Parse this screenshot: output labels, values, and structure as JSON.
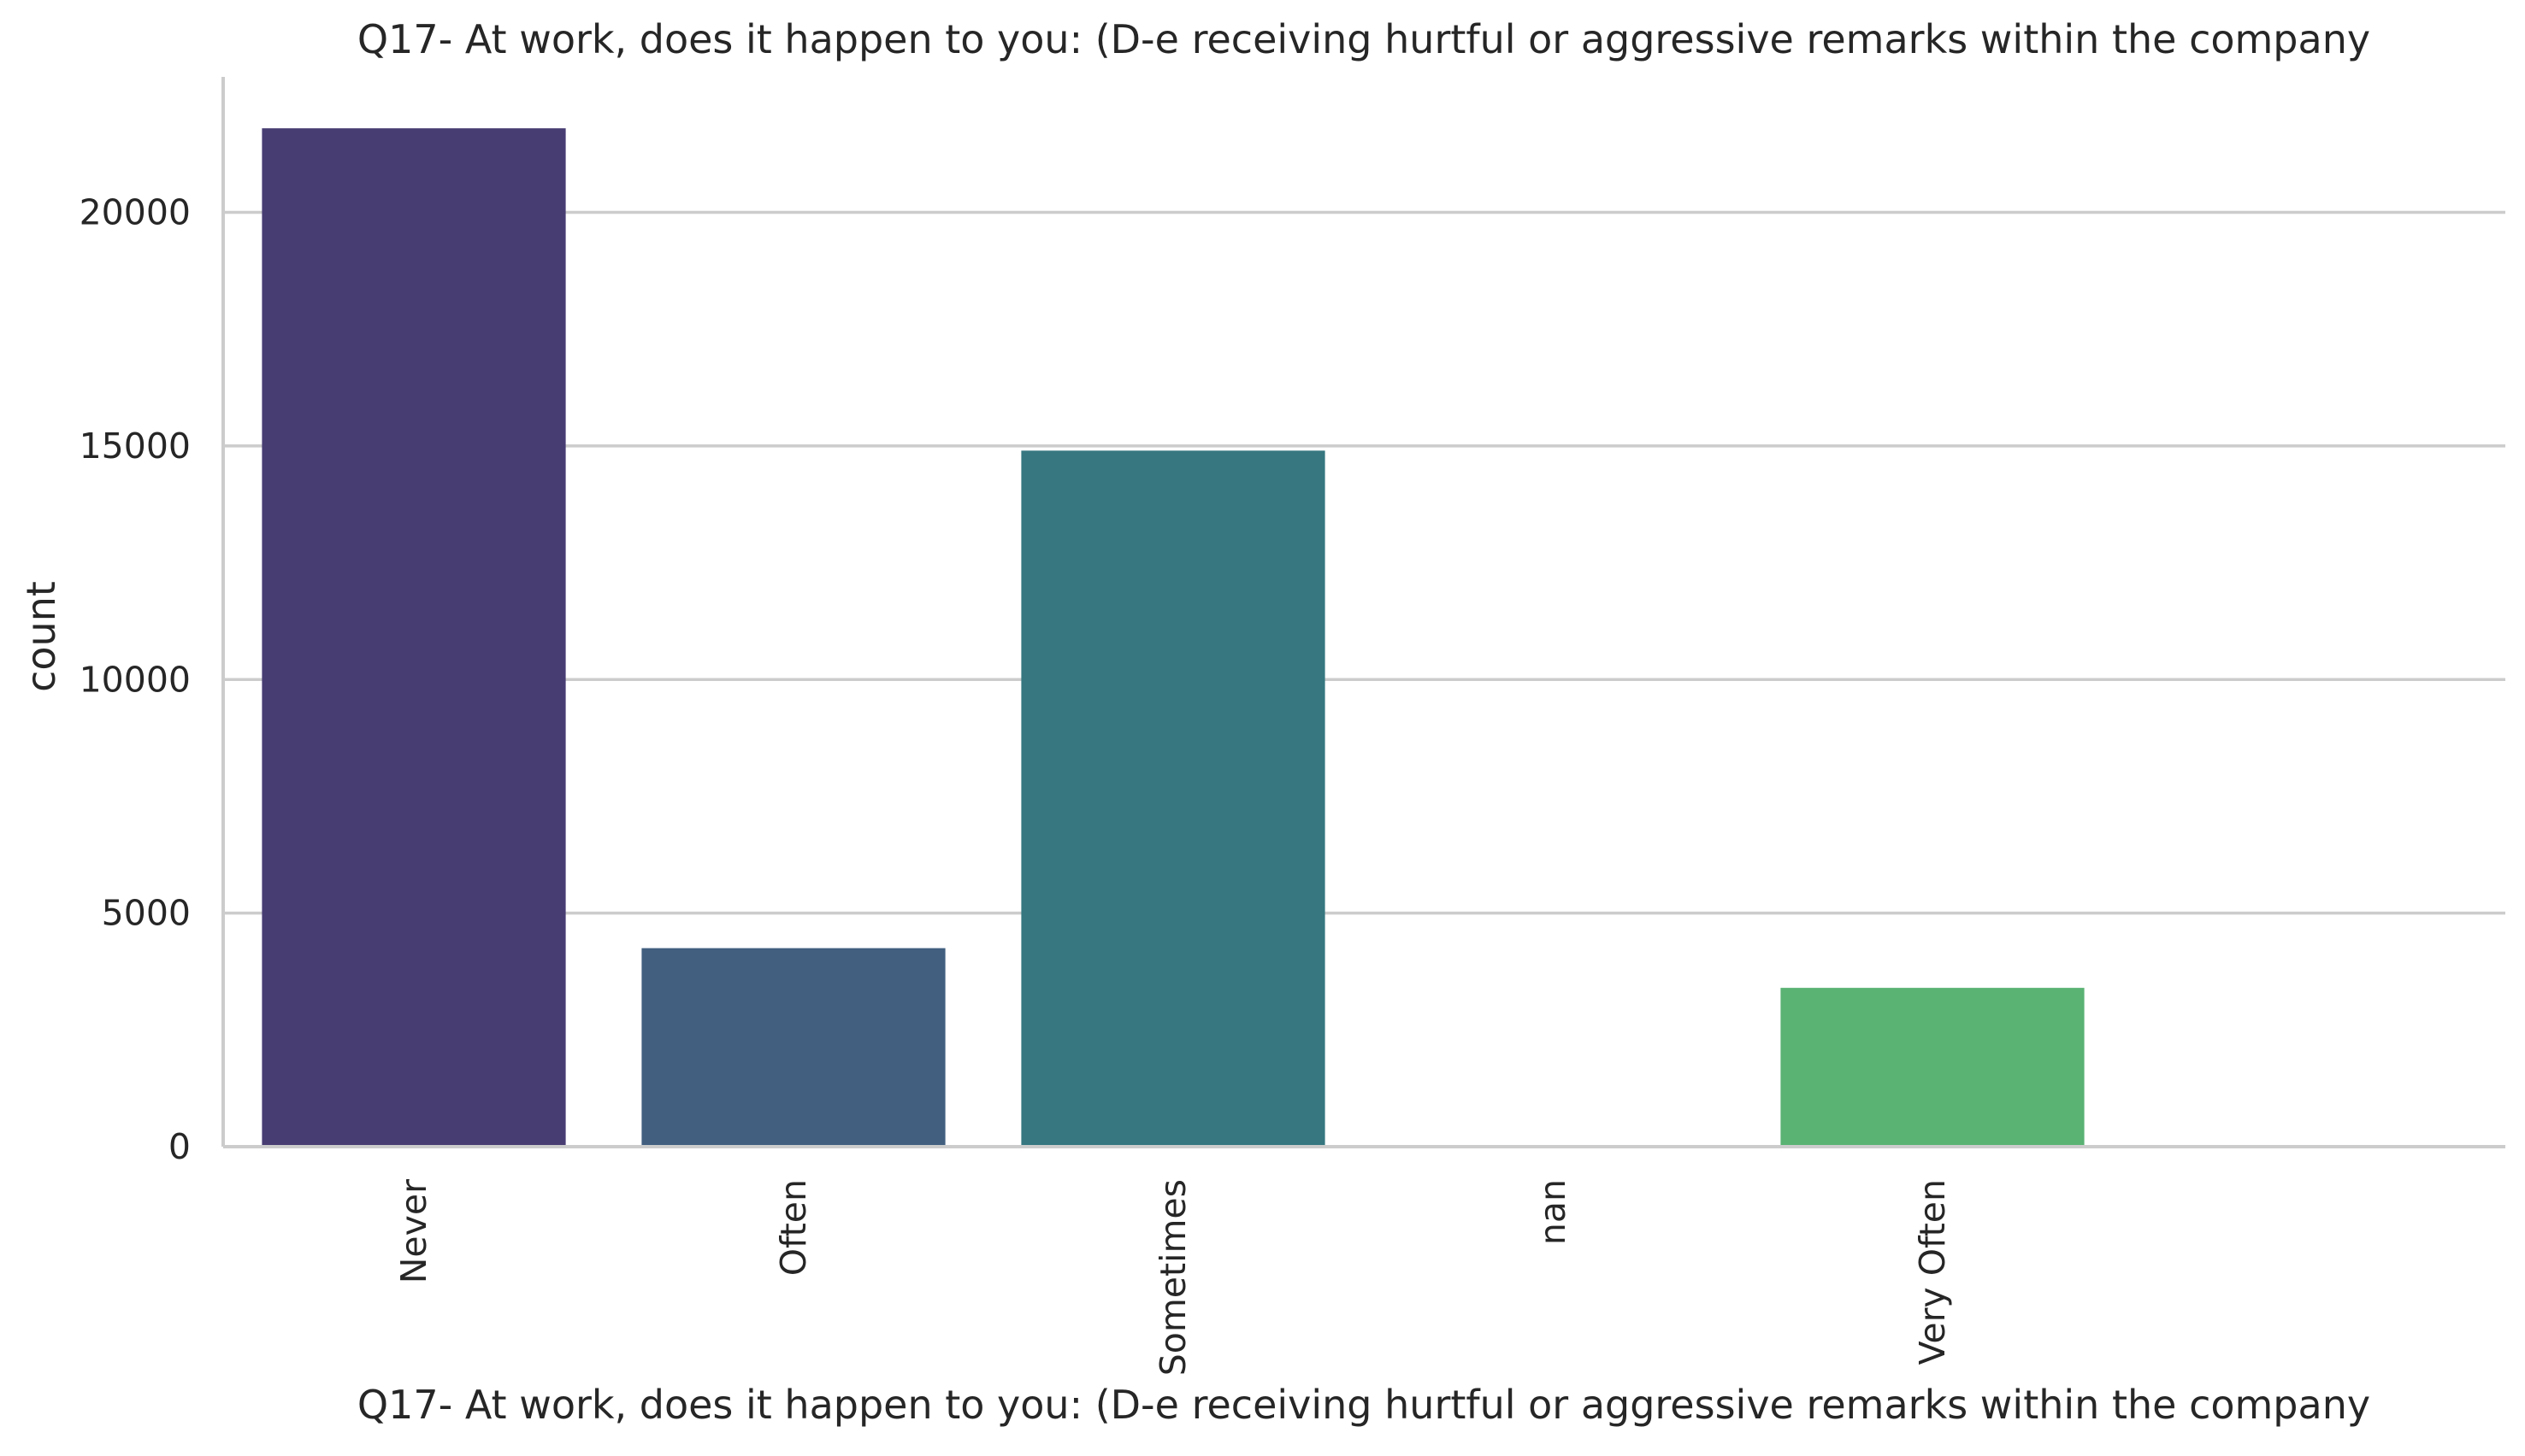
{
  "chart_data": {
    "type": "bar",
    "title": "Q17- At work, does it happen to you: (D-e receiving hurtful or aggressive remarks within the company",
    "xlabel": "Q17- At work, does it happen to you: (D-e receiving hurtful or aggressive remarks within the company",
    "ylabel": "count",
    "categories": [
      "Never",
      "Often",
      "Sometimes",
      "nan",
      "Very Often"
    ],
    "values": [
      21800,
      4250,
      14900,
      0,
      3400
    ],
    "colors": [
      "#483d73",
      "#425f80",
      "#367780",
      null,
      "#5ab273"
    ],
    "ylim": [
      0,
      22900
    ],
    "yticks": [
      0,
      5000,
      10000,
      15000,
      20000
    ],
    "grid": "horizontal",
    "legend": "none"
  }
}
